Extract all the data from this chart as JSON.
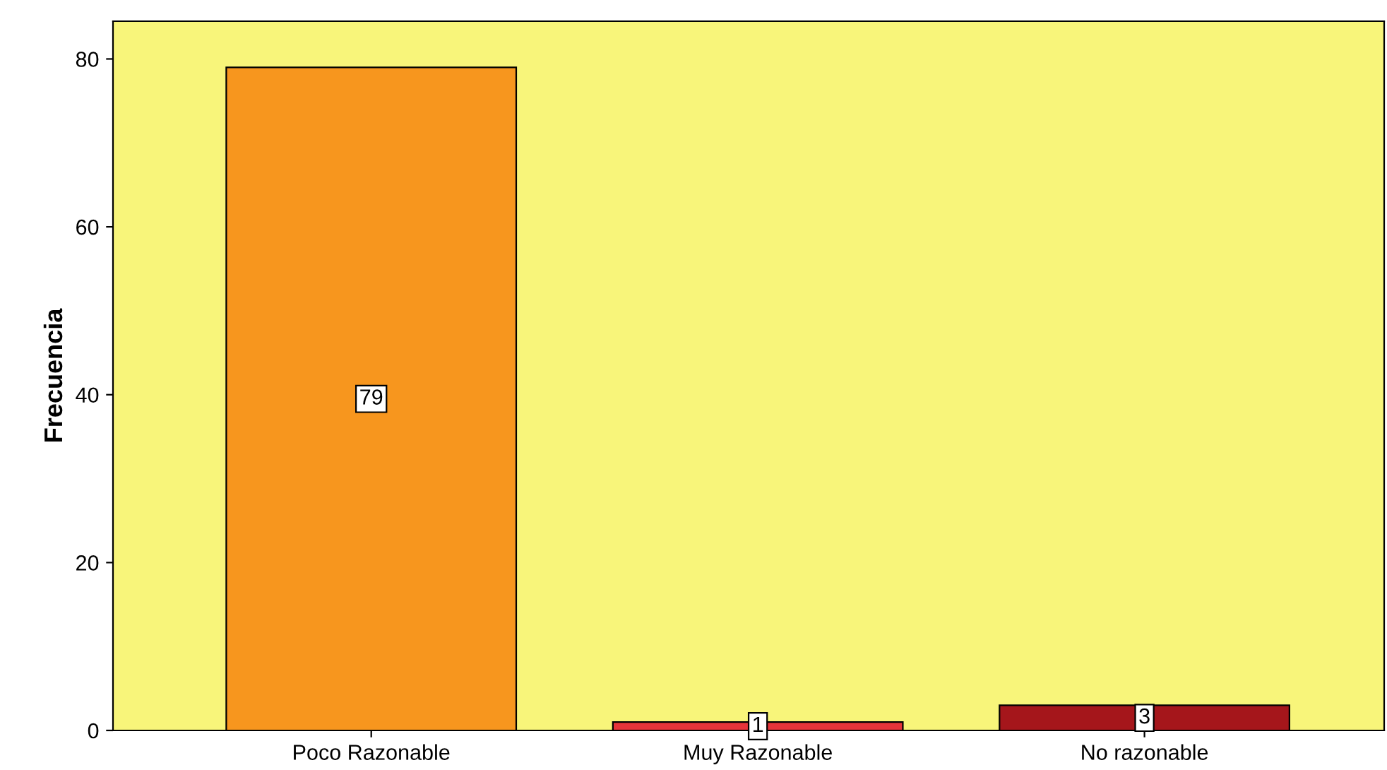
{
  "chart_data": {
    "type": "bar",
    "ylabel": "Frecuencia",
    "categories": [
      "Poco Razonable",
      "Muy Razonable",
      "No razonable"
    ],
    "values": [
      79,
      1,
      3
    ],
    "colors": [
      "#f7961e",
      "#e6343a",
      "#a5161b"
    ],
    "ylim": [
      0,
      84.5
    ],
    "yticks": [
      0,
      20,
      40,
      60,
      80
    ],
    "grid": false,
    "legend": false,
    "data_labels": true
  }
}
